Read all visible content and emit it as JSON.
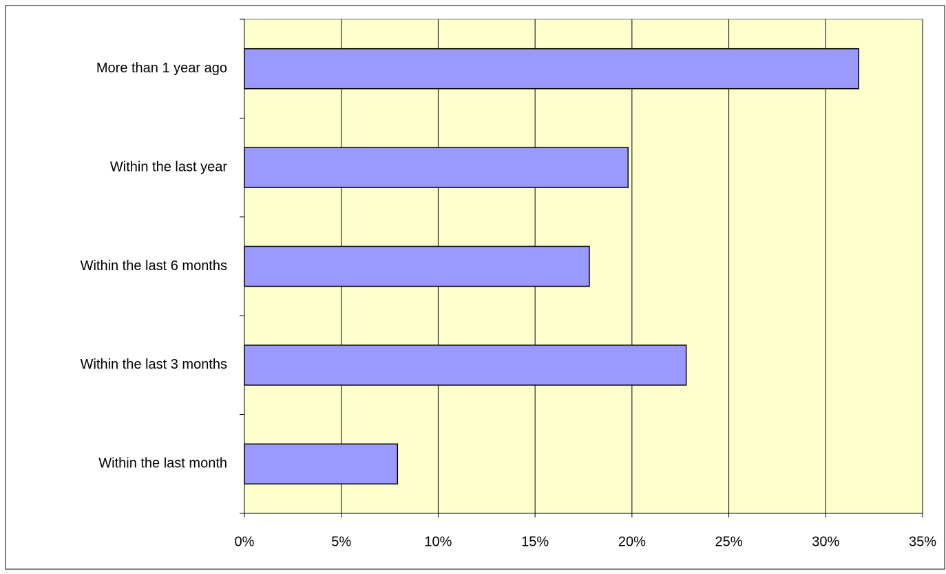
{
  "chart_data": {
    "type": "hbar",
    "categories": [
      "More than 1 year ago",
      "Within the last year",
      "Within the last 6 months",
      "Within the last 3 months",
      "Within the last month"
    ],
    "values": [
      31.7,
      19.8,
      17.8,
      22.8,
      7.9
    ],
    "color": "#9999ff",
    "plot_background": "#ffffcc",
    "xlim": [
      0,
      35
    ],
    "xticks": [
      {
        "value": 0,
        "label": "0%"
      },
      {
        "value": 5,
        "label": "5%"
      },
      {
        "value": 10,
        "label": "10%"
      },
      {
        "value": 15,
        "label": "15%"
      },
      {
        "value": 20,
        "label": "20%"
      },
      {
        "value": 25,
        "label": "25%"
      },
      {
        "value": 30,
        "label": "30%"
      },
      {
        "value": 35,
        "label": "35%"
      }
    ],
    "grid": true
  }
}
